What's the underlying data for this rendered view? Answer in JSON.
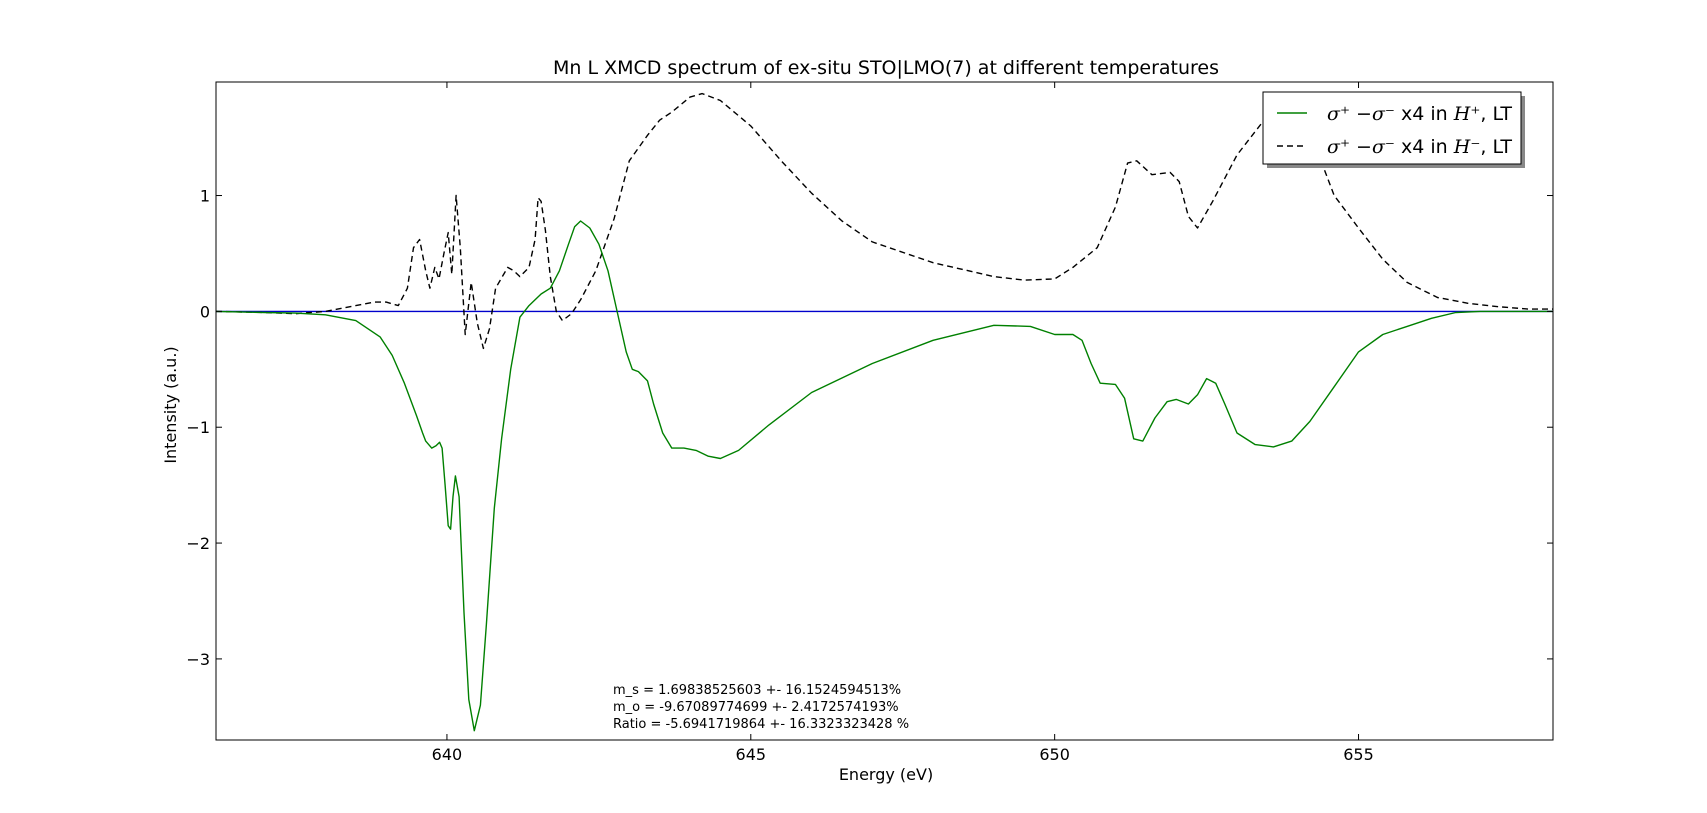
{
  "chart_data": {
    "type": "line",
    "title": "Mn L XMCD spectrum of ex-situ STO|LMO(7) at different temperatures",
    "xlabel": "Energy (eV)",
    "ylabel": "Intensity (a.u.)",
    "xlim": [
      636.2,
      658.2
    ],
    "ylim": [
      -3.7,
      1.98
    ],
    "xticks": [
      640,
      645,
      650,
      655
    ],
    "yticks": [
      -3,
      -2,
      -1,
      0,
      1
    ],
    "xtick_labels": [
      "640",
      "645",
      "650",
      "655"
    ],
    "ytick_labels": [
      "−3",
      "−2",
      "−1",
      "0",
      "1"
    ],
    "grid": false,
    "legend_position": "top-right",
    "legend": [
      {
        "label_math": "σ⁺ −σ⁻",
        "label_text": " x4 in ",
        "label_field": "H⁺",
        "label_suffix": ", LT"
      },
      {
        "label_math": "σ⁺ −σ⁻",
        "label_text": " x4 in ",
        "label_field": "H⁻",
        "label_suffix": ", LT"
      }
    ],
    "annotations": [
      "m_s = 1.69838525603 +- 16.1524594513%",
      "m_o = -9.67089774699 +- 2.4172574193%",
      "Ratio = -5.6941719864 +- 16.3323323428 %"
    ],
    "series": [
      {
        "color": "#008000",
        "dash": "solid",
        "x": [
          636.2,
          637.0,
          637.5,
          638.0,
          638.5,
          638.9,
          639.1,
          639.3,
          639.5,
          639.6,
          639.65,
          639.75,
          639.82,
          639.88,
          639.92,
          639.97,
          640.02,
          640.06,
          640.1,
          640.14,
          640.2,
          640.28,
          640.36,
          640.45,
          640.55,
          640.65,
          640.78,
          640.9,
          641.05,
          641.2,
          641.35,
          641.45,
          641.55,
          641.7,
          641.85,
          642.0,
          642.1,
          642.2,
          642.35,
          642.5,
          642.65,
          642.8,
          642.95,
          643.05,
          643.15,
          643.3,
          643.4,
          643.55,
          643.7,
          643.9,
          644.1,
          644.3,
          644.5,
          644.8,
          645.3,
          646.0,
          647.0,
          648.0,
          649.0,
          649.6,
          650.0,
          650.3,
          650.45,
          650.6,
          650.75,
          651.0,
          651.15,
          651.3,
          651.45,
          651.65,
          651.85,
          652.0,
          652.2,
          652.35,
          652.5,
          652.65,
          652.8,
          653.0,
          653.3,
          653.6,
          653.9,
          654.2,
          654.6,
          655.0,
          655.4,
          655.8,
          656.2,
          656.6,
          657.0,
          657.5,
          658.2
        ],
        "y": [
          0.0,
          -0.01,
          -0.015,
          -0.03,
          -0.08,
          -0.22,
          -0.38,
          -0.62,
          -0.9,
          -1.05,
          -1.12,
          -1.18,
          -1.16,
          -1.13,
          -1.18,
          -1.5,
          -1.85,
          -1.88,
          -1.6,
          -1.42,
          -1.6,
          -2.6,
          -3.35,
          -3.62,
          -3.4,
          -2.7,
          -1.7,
          -1.1,
          -0.5,
          -0.05,
          0.05,
          0.1,
          0.15,
          0.2,
          0.35,
          0.58,
          0.73,
          0.78,
          0.72,
          0.58,
          0.35,
          0.0,
          -0.35,
          -0.5,
          -0.52,
          -0.6,
          -0.8,
          -1.05,
          -1.18,
          -1.18,
          -1.2,
          -1.25,
          -1.27,
          -1.2,
          -0.98,
          -0.7,
          -0.45,
          -0.25,
          -0.12,
          -0.13,
          -0.2,
          -0.2,
          -0.25,
          -0.45,
          -0.62,
          -0.63,
          -0.75,
          -1.1,
          -1.12,
          -0.92,
          -0.78,
          -0.76,
          -0.8,
          -0.72,
          -0.58,
          -0.62,
          -0.8,
          -1.05,
          -1.15,
          -1.17,
          -1.12,
          -0.95,
          -0.65,
          -0.35,
          -0.2,
          -0.13,
          -0.06,
          -0.01,
          0.0,
          0.0,
          0.0
        ]
      },
      {
        "color": "#000000",
        "dash": "dashed",
        "x": [
          636.2,
          637.0,
          637.5,
          638.0,
          638.5,
          638.8,
          639.0,
          639.2,
          639.35,
          639.45,
          639.55,
          639.65,
          639.72,
          639.8,
          639.87,
          639.95,
          640.02,
          640.08,
          640.15,
          640.22,
          640.3,
          640.4,
          640.5,
          640.6,
          640.7,
          640.8,
          641.0,
          641.1,
          641.2,
          641.35,
          641.45,
          641.5,
          641.55,
          641.62,
          641.7,
          641.8,
          641.9,
          642.05,
          642.2,
          642.45,
          642.75,
          643.0,
          643.3,
          643.5,
          643.7,
          644.0,
          644.2,
          644.5,
          645.0,
          645.5,
          646.0,
          646.5,
          647.0,
          648.0,
          649.0,
          649.5,
          650.0,
          650.3,
          650.7,
          651.0,
          651.2,
          651.35,
          651.6,
          651.9,
          652.05,
          652.2,
          652.35,
          652.6,
          653.0,
          653.4,
          653.8,
          654.2,
          654.6,
          655.0,
          655.4,
          655.8,
          656.3,
          656.8,
          657.3,
          657.8,
          658.2
        ],
        "y": [
          0.0,
          -0.01,
          -0.02,
          0.0,
          0.05,
          0.08,
          0.08,
          0.05,
          0.2,
          0.55,
          0.62,
          0.35,
          0.2,
          0.38,
          0.28,
          0.5,
          0.68,
          0.32,
          1.0,
          0.55,
          -0.2,
          0.25,
          -0.1,
          -0.32,
          -0.15,
          0.2,
          0.38,
          0.35,
          0.3,
          0.38,
          0.62,
          0.98,
          0.95,
          0.7,
          0.3,
          0.0,
          -0.08,
          -0.02,
          0.1,
          0.35,
          0.8,
          1.3,
          1.52,
          1.65,
          1.72,
          1.85,
          1.88,
          1.82,
          1.6,
          1.3,
          1.02,
          0.78,
          0.6,
          0.42,
          0.3,
          0.27,
          0.28,
          0.38,
          0.55,
          0.9,
          1.28,
          1.3,
          1.18,
          1.2,
          1.12,
          0.82,
          0.72,
          0.95,
          1.35,
          1.62,
          1.75,
          1.55,
          1.0,
          0.72,
          0.45,
          0.25,
          0.12,
          0.07,
          0.04,
          0.02,
          0.02
        ]
      },
      {
        "color": "#0000cc",
        "dash": "solid",
        "x": [
          636.2,
          658.2
        ],
        "y": [
          0.0,
          0.0
        ]
      }
    ]
  }
}
